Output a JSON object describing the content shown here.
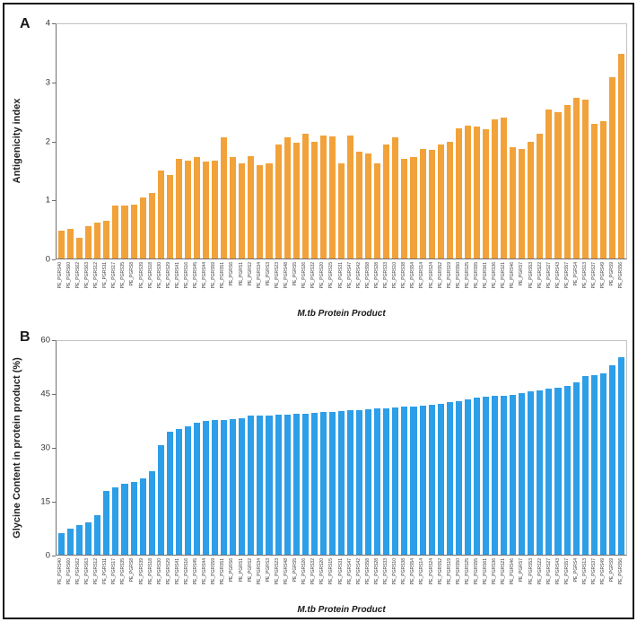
{
  "figure": {
    "panel_a_letter": "A",
    "panel_b_letter": "B",
    "x_axis_title": "M.tb Protein Product"
  },
  "chart_data": [
    {
      "type": "bar",
      "panel": "A",
      "ylabel": "Antigenicity index",
      "xlabel": "M.tb Protein Product",
      "ylim": [
        0,
        4
      ],
      "yticks": [
        0,
        1,
        2,
        3,
        4
      ],
      "grid": false,
      "legend": "none",
      "bar_color": "#F2A23A",
      "categories": [
        "PE_PGRS40",
        "PE_PGRS60",
        "PE_PGRS62",
        "PE_PGRS63",
        "PE_PGRS12",
        "PE_PGRS11",
        "PE_PGRS17",
        "PE_PGRS35",
        "PE_PGRS8",
        "PE_PGRS39",
        "PE_PGRS18",
        "PE_PGRS30",
        "PE_PGRS29",
        "PE_PGRS41",
        "PE_PGRS16",
        "PE_PGRS45",
        "PE_PGRS44",
        "PE_PGRS59",
        "PE_PGRS51",
        "PE_PGRS6",
        "PE_PGRS1",
        "PE_PGRS2",
        "PE_PGRS34",
        "PE_PGRS3",
        "PE_PGRS23",
        "PE_PGRS48",
        "PE_PGRS5",
        "PE_PGRS26",
        "PE_PGRS32",
        "PE_PGRS20",
        "PE_PGRS15",
        "PE_PGRS31",
        "PE_PGRS47",
        "PE_PGRS42",
        "PE_PGRS58",
        "PE_PGRS28",
        "PE_PGRS33",
        "PE_PGRS10",
        "PE_PGRS38",
        "PE_PGRS54",
        "PE_PGRS14",
        "PE_PGRS24",
        "PE_PGRS52",
        "PE_PGRS19",
        "PE_PGRS50",
        "PE_PGRS25",
        "PE_PGRS55",
        "PE_PGRS61",
        "PE_PGRS36",
        "PE_PGRS21",
        "PE_PGRS46",
        "PE_PGRS7",
        "PE_PGRS53",
        "PE_PGRS22",
        "PE_PGRS27",
        "PE_PGRS43",
        "PE_PGRS57",
        "PE_PGRS4",
        "PE_PGRS13",
        "PE_PGRS37",
        "PE_PGRS49",
        "PE_PGRS9",
        "PE_PGRS56"
      ],
      "values": [
        0.48,
        0.5,
        0.35,
        0.55,
        0.62,
        0.65,
        0.9,
        0.9,
        0.92,
        1.05,
        1.12,
        1.5,
        1.43,
        1.7,
        1.67,
        1.73,
        1.65,
        1.67,
        2.07,
        1.73,
        1.62,
        1.75,
        1.6,
        1.63,
        1.95,
        2.07,
        1.97,
        2.13,
        2.0,
        2.1,
        2.08,
        1.63,
        2.1,
        1.83,
        1.8,
        1.63,
        1.95,
        2.07,
        1.7,
        1.73,
        1.87,
        1.85,
        1.95,
        2.0,
        2.23,
        2.27,
        2.25,
        2.2,
        2.37,
        2.4,
        1.9,
        1.87,
        2.0,
        2.13,
        2.55,
        2.5,
        2.62,
        2.75,
        2.72,
        2.3,
        2.35,
        3.1,
        3.5
      ]
    },
    {
      "type": "bar",
      "panel": "B",
      "ylabel": "Glycine Content in protein product (%)",
      "xlabel": "M.tb Protein Product",
      "ylim": [
        0,
        60
      ],
      "yticks": [
        0,
        15,
        30,
        45,
        60
      ],
      "grid": false,
      "legend": "none",
      "bar_color": "#2D9EE8",
      "categories": [
        "PE_PGRS40",
        "PE_PGRS60",
        "PE_PGRS62",
        "PE_PGRS63",
        "PE_PGRS12",
        "PE_PGRS11",
        "PE_PGRS17",
        "PE_PGRS35",
        "PE_PGRS8",
        "PE_PGRS39",
        "PE_PGRS18",
        "PE_PGRS30",
        "PE_PGRS29",
        "PE_PGRS41",
        "PE_PGRS16",
        "PE_PGRS45",
        "PE_PGRS44",
        "PE_PGRS59",
        "PE_PGRS51",
        "PE_PGRS6",
        "PE_PGRS1",
        "PE_PGRS2",
        "PE_PGRS34",
        "PE_PGRS3",
        "PE_PGRS23",
        "PE_PGRS48",
        "PE_PGRS5",
        "PE_PGRS26",
        "PE_PGRS32",
        "PE_PGRS20",
        "PE_PGRS15",
        "PE_PGRS31",
        "PE_PGRS47",
        "PE_PGRS42",
        "PE_PGRS58",
        "PE_PGRS28",
        "PE_PGRS33",
        "PE_PGRS10",
        "PE_PGRS38",
        "PE_PGRS54",
        "PE_PGRS14",
        "PE_PGRS24",
        "PE_PGRS52",
        "PE_PGRS19",
        "PE_PGRS50",
        "PE_PGRS25",
        "PE_PGRS55",
        "PE_PGRS61",
        "PE_PGRS36",
        "PE_PGRS21",
        "PE_PGRS46",
        "PE_PGRS7",
        "PE_PGRS53",
        "PE_PGRS22",
        "PE_PGRS27",
        "PE_PGRS43",
        "PE_PGRS57",
        "PE_PGRS4",
        "PE_PGRS13",
        "PE_PGRS37",
        "PE_PGRS49",
        "PE_PGRS9",
        "PE_PGRS56"
      ],
      "values": [
        6.0,
        7.3,
        8.4,
        9.1,
        11.0,
        18.0,
        19.0,
        19.9,
        20.4,
        21.4,
        23.4,
        30.8,
        34.6,
        35.2,
        36.0,
        37.1,
        37.5,
        37.7,
        37.9,
        38.1,
        38.3,
        39.0,
        39.1,
        39.2,
        39.3,
        39.4,
        39.5,
        39.6,
        39.8,
        40.0,
        40.2,
        40.4,
        40.5,
        40.7,
        40.9,
        41.0,
        41.2,
        41.4,
        41.5,
        41.7,
        41.9,
        42.1,
        42.4,
        42.8,
        43.2,
        43.6,
        44.0,
        44.3,
        44.5,
        44.7,
        45.0,
        45.4,
        45.8,
        46.2,
        46.6,
        47.0,
        47.5,
        48.5,
        50.2,
        50.5,
        51.0,
        53.3,
        55.5
      ]
    }
  ]
}
